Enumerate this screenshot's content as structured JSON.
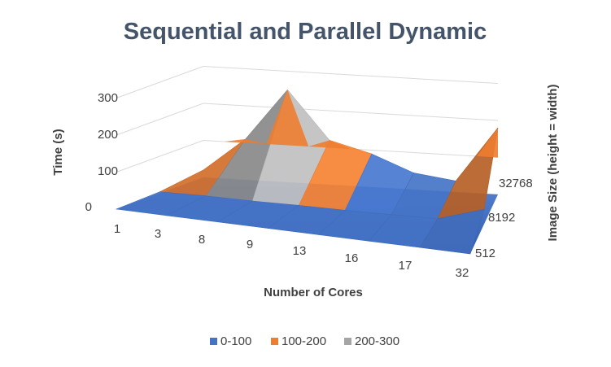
{
  "chart_data": {
    "type": "surface-3d",
    "title": "Sequential and Parallel Dynamic",
    "xlabel": "Number of Cores",
    "ylabel": "Time (s)",
    "zlabel": "Image Size (height = width)",
    "x_categories": [
      "1",
      "3",
      "8",
      "9",
      "13",
      "16",
      "17",
      "32"
    ],
    "depth_categories": [
      "512",
      "8192",
      "32768"
    ],
    "y_ticks": [
      "0",
      "100",
      "200",
      "300"
    ],
    "ylim": [
      0,
      300
    ],
    "bands": [
      {
        "name": "0-100",
        "range": [
          0,
          100
        ],
        "color": "#4472c4"
      },
      {
        "name": "100-200",
        "range": [
          100,
          200
        ],
        "color": "#ed7d31"
      },
      {
        "name": "200-300",
        "range": [
          200,
          300
        ],
        "color": "#a5a5a5"
      }
    ],
    "series": [
      {
        "name": "512",
        "values": [
          0,
          0,
          0,
          0,
          0,
          0,
          0,
          0
        ]
      },
      {
        "name": "8192",
        "values": [
          4,
          5,
          3,
          3,
          2,
          2,
          3,
          40
        ]
      },
      {
        "name": "32768",
        "values": [
          20,
          110,
          250,
          120,
          90,
          45,
          30,
          180
        ]
      }
    ],
    "legend_position": "bottom",
    "grid": true
  }
}
